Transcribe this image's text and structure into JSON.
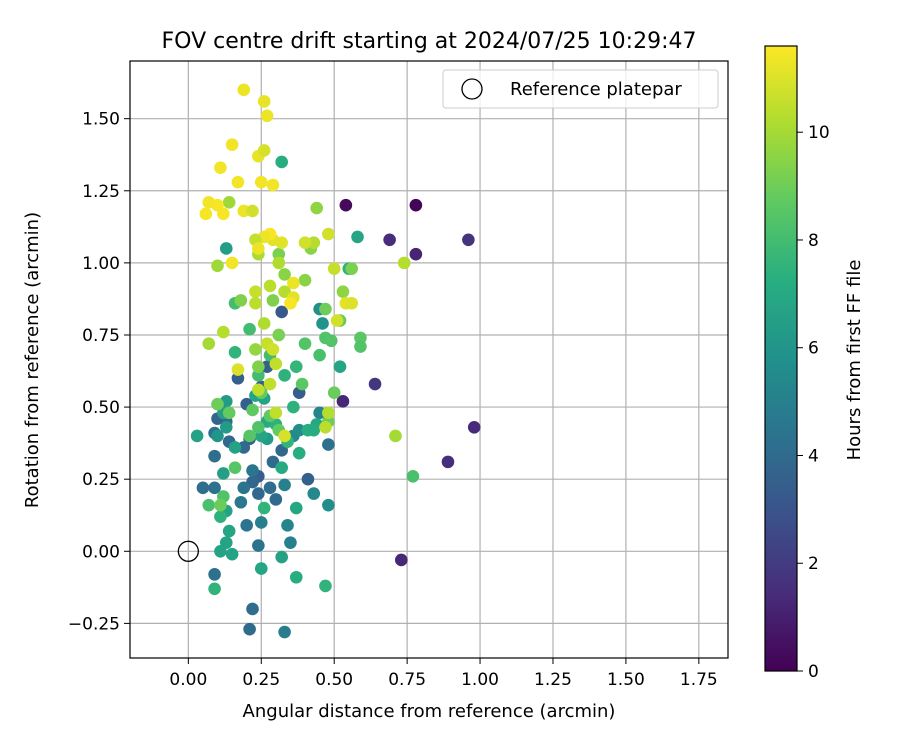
{
  "chart_data": {
    "type": "scatter",
    "title": "FOV centre drift starting at 2024/07/25 10:29:47",
    "xlabel": "Angular distance from reference (arcmin)",
    "ylabel": "Rotation from reference (arcmin)",
    "xlim": [
      -0.2,
      1.85
    ],
    "ylim": [
      -0.37,
      1.7
    ],
    "xticks": [
      "0.00",
      "0.25",
      "0.50",
      "0.75",
      "1.00",
      "1.25",
      "1.50",
      "1.75"
    ],
    "yticks": [
      "−0.25",
      "0.00",
      "0.25",
      "0.50",
      "0.75",
      "1.00",
      "1.25",
      "1.50"
    ],
    "grid": true,
    "legend": {
      "placement": "top-right",
      "entries": [
        "Reference platepar"
      ]
    },
    "reference_point": {
      "x": 0.0,
      "y": 0.0,
      "marker": "hollow circle"
    },
    "colorbar": {
      "label": "Hours from first FF file",
      "colormap": "viridis",
      "range": [
        0,
        11.6
      ],
      "ticks": [
        "0",
        "2",
        "4",
        "6",
        "8",
        "10"
      ]
    },
    "colors": {
      "min": "#440154",
      "max": "#fde725"
    },
    "series": [
      {
        "color_by": "hours",
        "points": [
          [
            0.54,
            1.2,
            0.3
          ],
          [
            0.78,
            1.2,
            0.1
          ],
          [
            0.69,
            1.08,
            1.5
          ],
          [
            0.96,
            1.08,
            1.7
          ],
          [
            0.78,
            1.03,
            1.2
          ],
          [
            0.64,
            0.58,
            1.8
          ],
          [
            0.53,
            0.52,
            1.3
          ],
          [
            0.98,
            0.43,
            1.4
          ],
          [
            0.89,
            0.31,
            1.5
          ],
          [
            0.73,
            -0.03,
            1.3
          ],
          [
            0.32,
            0.83,
            3.2
          ],
          [
            0.17,
            0.6,
            3.5
          ],
          [
            0.2,
            0.51,
            3.5
          ],
          [
            0.25,
            0.57,
            3.3
          ],
          [
            0.27,
            0.64,
            3.6
          ],
          [
            0.38,
            0.55,
            3.4
          ],
          [
            0.21,
            0.39,
            3.5
          ],
          [
            0.19,
            0.36,
            4.0
          ],
          [
            0.24,
            0.26,
            3.5
          ],
          [
            0.29,
            0.31,
            4.0
          ],
          [
            0.32,
            0.35,
            3.8
          ],
          [
            0.13,
            0.45,
            4.0
          ],
          [
            0.1,
            0.46,
            3.7
          ],
          [
            0.09,
            0.41,
            4.2
          ],
          [
            0.09,
            0.33,
            4.2
          ],
          [
            0.48,
            0.37,
            4.3
          ],
          [
            0.41,
            0.25,
            3.6
          ],
          [
            0.24,
            0.2,
            3.9
          ],
          [
            0.28,
            0.22,
            4.1
          ],
          [
            0.3,
            0.18,
            4.0
          ],
          [
            0.22,
            0.24,
            3.8
          ],
          [
            0.14,
            0.38,
            3.9
          ],
          [
            0.05,
            0.22,
            4.2
          ],
          [
            0.09,
            0.22,
            4.3
          ],
          [
            0.18,
            0.17,
            4.6
          ],
          [
            0.2,
            0.09,
            4.4
          ],
          [
            0.25,
            0.1,
            5.0
          ],
          [
            0.34,
            0.09,
            5.2
          ],
          [
            0.35,
            0.03,
            5.0
          ],
          [
            0.24,
            0.02,
            4.4
          ],
          [
            0.09,
            -0.08,
            4.3
          ],
          [
            0.22,
            -0.2,
            4.1
          ],
          [
            0.21,
            -0.27,
            4.0
          ],
          [
            0.33,
            -0.28,
            4.8
          ],
          [
            0.22,
            0.28,
            4.5
          ],
          [
            0.19,
            0.22,
            4.4
          ],
          [
            0.43,
            0.2,
            5.4
          ],
          [
            0.48,
            0.16,
            5.6
          ],
          [
            0.33,
            0.23,
            5.0
          ],
          [
            0.45,
            0.48,
            5.2
          ],
          [
            0.36,
            0.4,
            5.4
          ],
          [
            0.38,
            0.42,
            5.6
          ],
          [
            0.46,
            0.79,
            5.9
          ],
          [
            0.45,
            0.84,
            5.7
          ],
          [
            0.13,
            1.05,
            6.4
          ],
          [
            0.32,
            1.35,
            7.2
          ],
          [
            0.58,
            1.09,
            6.8
          ],
          [
            0.55,
            0.98,
            7.4
          ],
          [
            0.52,
            0.64,
            6.8
          ],
          [
            0.44,
            0.44,
            6.9
          ],
          [
            0.23,
            0.54,
            6.7
          ],
          [
            0.26,
            0.53,
            6.7
          ],
          [
            0.13,
            0.52,
            6.3
          ],
          [
            0.12,
            0.48,
            6.5
          ],
          [
            0.13,
            0.43,
            6.3
          ],
          [
            0.16,
            0.36,
            6.6
          ],
          [
            0.27,
            0.39,
            6.3
          ],
          [
            0.25,
            0.4,
            6.8
          ],
          [
            0.27,
            0.45,
            7.0
          ],
          [
            0.1,
            0.4,
            6.0
          ],
          [
            0.03,
            0.4,
            6.6
          ],
          [
            0.12,
            0.27,
            6.5
          ],
          [
            0.13,
            0.14,
            6.6
          ],
          [
            0.14,
            0.07,
            6.8
          ],
          [
            0.13,
            0.03,
            6.7
          ],
          [
            0.11,
            0.0,
            6.7
          ],
          [
            0.15,
            -0.01,
            6.7
          ],
          [
            0.25,
            -0.06,
            6.8
          ],
          [
            0.32,
            -0.02,
            6.6
          ],
          [
            0.37,
            -0.09,
            7.2
          ],
          [
            0.47,
            -0.12,
            7.5
          ],
          [
            0.09,
            -0.13,
            7.5
          ],
          [
            0.11,
            0.12,
            7.4
          ],
          [
            0.26,
            0.15,
            7.5
          ],
          [
            0.37,
            0.15,
            6.9
          ],
          [
            0.38,
            0.34,
            7.2
          ],
          [
            0.41,
            0.42,
            7.2
          ],
          [
            0.43,
            0.42,
            7.1
          ],
          [
            0.3,
            0.44,
            7.4
          ],
          [
            0.33,
            0.61,
            7.4
          ],
          [
            0.36,
            0.5,
            7.4
          ],
          [
            0.32,
            0.29,
            7.0
          ],
          [
            0.34,
            0.38,
            7.5
          ],
          [
            0.37,
            0.64,
            7.6
          ],
          [
            0.16,
            0.69,
            7.5
          ],
          [
            0.16,
            0.86,
            8.0
          ],
          [
            0.21,
            0.77,
            8.0
          ],
          [
            0.24,
            0.61,
            8.0
          ],
          [
            0.28,
            0.68,
            8.0
          ],
          [
            0.4,
            0.72,
            8.4
          ],
          [
            0.45,
            0.68,
            8.2
          ],
          [
            0.47,
            0.74,
            8.3
          ],
          [
            0.49,
            0.73,
            8.4
          ],
          [
            0.52,
            0.8,
            8.8
          ],
          [
            0.59,
            0.74,
            8.6
          ],
          [
            0.59,
            0.71,
            8.4
          ],
          [
            0.5,
            0.55,
            8.9
          ],
          [
            0.48,
            0.45,
            9.0
          ],
          [
            0.39,
            0.58,
            8.6
          ],
          [
            0.22,
            0.49,
            8.7
          ],
          [
            0.14,
            0.48,
            8.8
          ],
          [
            0.1,
            0.51,
            9.0
          ],
          [
            0.16,
            0.29,
            8.5
          ],
          [
            0.12,
            0.19,
            8.3
          ],
          [
            0.07,
            0.16,
            8.2
          ],
          [
            0.11,
            0.16,
            8.9
          ],
          [
            0.21,
            0.4,
            8.5
          ],
          [
            0.24,
            0.43,
            8.3
          ],
          [
            0.28,
            0.47,
            8.7
          ],
          [
            0.31,
            0.42,
            8.8
          ],
          [
            0.25,
            0.55,
            8.8
          ],
          [
            0.77,
            0.26,
            8.2
          ],
          [
            0.71,
            0.4,
            10.0
          ],
          [
            0.56,
            0.98,
            9.2
          ],
          [
            0.53,
            0.9,
            9.6
          ],
          [
            0.47,
            0.84,
            9.0
          ],
          [
            0.4,
            0.94,
            9.5
          ],
          [
            0.44,
            1.19,
            9.6
          ],
          [
            0.42,
            1.05,
            9.5
          ],
          [
            0.31,
            1.03,
            9.2
          ],
          [
            0.33,
            0.96,
            9.5
          ],
          [
            0.29,
            0.87,
            9.3
          ],
          [
            0.31,
            0.75,
            9.2
          ],
          [
            0.24,
            0.64,
            9.3
          ],
          [
            0.23,
            0.7,
            9.7
          ],
          [
            0.18,
            0.87,
            9.3
          ],
          [
            0.14,
            1.21,
            9.9
          ],
          [
            0.1,
            0.99,
            9.9
          ],
          [
            0.12,
            0.76,
            10.3
          ],
          [
            0.07,
            0.72,
            10.0
          ],
          [
            0.24,
            1.03,
            10.1
          ],
          [
            0.31,
            1.0,
            10.2
          ],
          [
            0.28,
            0.92,
            10.4
          ],
          [
            0.33,
            0.9,
            10.3
          ],
          [
            0.23,
            0.9,
            10.6
          ],
          [
            0.23,
            0.86,
            10.4
          ],
          [
            0.26,
            0.79,
            10.2
          ],
          [
            0.27,
            0.72,
            10.6
          ],
          [
            0.29,
            0.7,
            10.8
          ],
          [
            0.3,
            0.65,
            10.5
          ],
          [
            0.28,
            0.58,
            10.5
          ],
          [
            0.24,
            0.56,
            10.5
          ],
          [
            0.3,
            0.48,
            10.5
          ],
          [
            0.33,
            0.4,
            10.9
          ],
          [
            0.47,
            0.43,
            10.4
          ],
          [
            0.48,
            0.48,
            10.3
          ],
          [
            0.74,
            1.0,
            10.3
          ],
          [
            0.43,
            1.07,
            10.3
          ],
          [
            0.48,
            1.1,
            10.8
          ],
          [
            0.5,
            0.98,
            10.6
          ],
          [
            0.54,
            0.86,
            11.1
          ],
          [
            0.56,
            0.86,
            11.0
          ],
          [
            0.51,
            0.8,
            10.8
          ],
          [
            0.36,
            0.88,
            11.1
          ],
          [
            0.36,
            0.93,
            11.3
          ],
          [
            0.35,
            0.86,
            11.5
          ],
          [
            0.29,
            1.08,
            11.1
          ],
          [
            0.28,
            1.1,
            11.5
          ],
          [
            0.26,
            1.09,
            11.3
          ],
          [
            0.23,
            1.08,
            10.6
          ],
          [
            0.24,
            1.05,
            11.3
          ],
          [
            0.32,
            1.07,
            11.1
          ],
          [
            0.4,
            1.07,
            10.8
          ],
          [
            0.29,
            1.27,
            11.4
          ],
          [
            0.25,
            1.28,
            11.4
          ],
          [
            0.24,
            1.37,
            11.2
          ],
          [
            0.26,
            1.39,
            10.9
          ],
          [
            0.15,
            1.41,
            11.4
          ],
          [
            0.11,
            1.33,
            11.4
          ],
          [
            0.17,
            1.28,
            11.4
          ],
          [
            0.07,
            1.21,
            11.4
          ],
          [
            0.06,
            1.17,
            11.5
          ],
          [
            0.1,
            1.2,
            11.5
          ],
          [
            0.12,
            1.17,
            11.5
          ],
          [
            0.19,
            1.18,
            11.3
          ],
          [
            0.22,
            1.18,
            10.8
          ],
          [
            0.19,
            1.6,
            11.3
          ],
          [
            0.26,
            1.56,
            11.2
          ],
          [
            0.27,
            1.51,
            11.3
          ],
          [
            0.15,
            1.0,
            11.4
          ],
          [
            0.17,
            0.63,
            11.0
          ]
        ]
      }
    ]
  }
}
